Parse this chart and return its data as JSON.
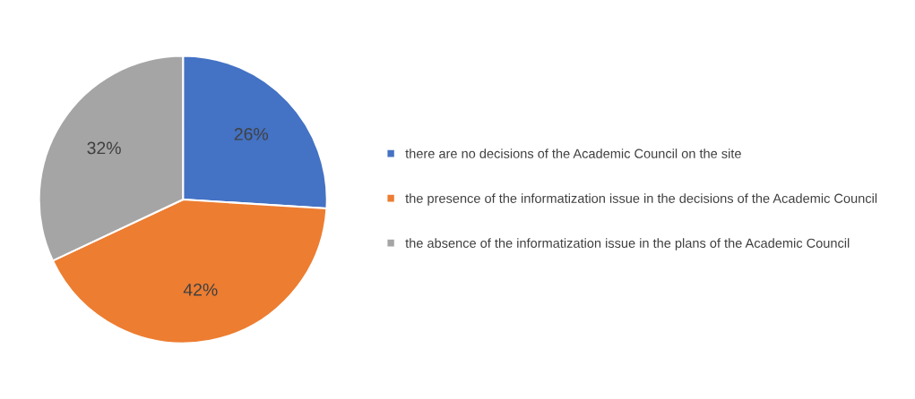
{
  "chart_data": {
    "type": "pie",
    "categories": [
      "there are no decisions of the Academic Council on the site",
      "the presence of the informatization issue in the decisions of the Academic Council",
      "the absence of the informatization issue in the plans of the Academic Council"
    ],
    "values": [
      26,
      42,
      32
    ],
    "colors": [
      "#4472c4",
      "#ed7d31",
      "#a5a5a5"
    ],
    "value_labels": [
      "26%",
      "42%",
      "32%"
    ],
    "legend": "right"
  }
}
